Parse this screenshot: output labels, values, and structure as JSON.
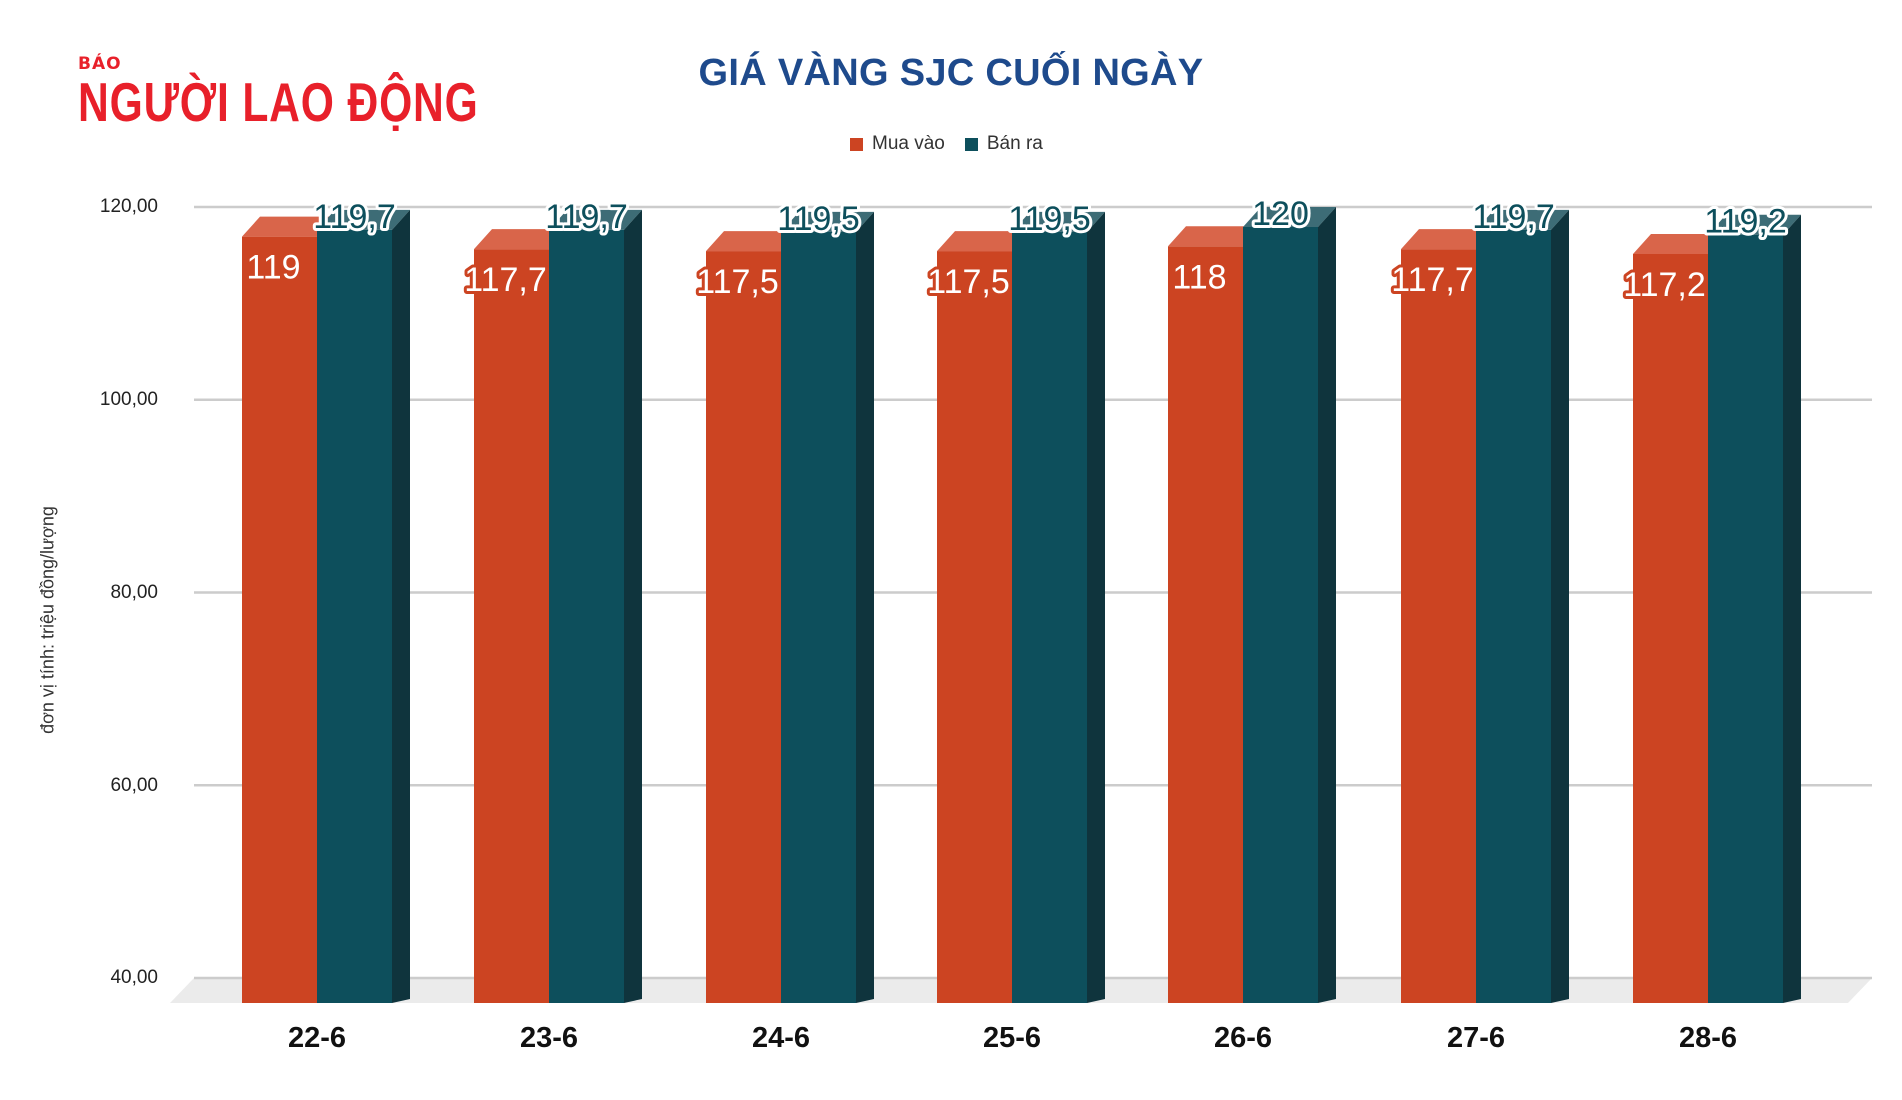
{
  "logo": {
    "small": "BÁO",
    "big": "NGƯỜI LAO ĐỘNG",
    "color": "#e8202a"
  },
  "title": "GIÁ VÀNG SJC CUỐI NGÀY",
  "legend": [
    {
      "label": "Mua vào",
      "color": "#cc4422"
    },
    {
      "label": "Bán ra",
      "color": "#0d4f5c"
    }
  ],
  "y_axis": {
    "title": "đơn vị tính: triệu đồng/lượng",
    "ticks": [
      "120,00",
      "100,00",
      "80,00",
      "60,00",
      "40,00"
    ]
  },
  "colors": {
    "buy_front": "#cc4422",
    "buy_top": "#d9654a",
    "buy_side": "#a5361b",
    "sell_front": "#0d4f5c",
    "sell_top": "#3d6c76",
    "sell_side": "#0f343d",
    "grid": "#cccccc",
    "floor": "#ebebeb"
  },
  "chart_data": {
    "type": "bar",
    "title": "GIÁ VÀNG SJC CUỐI NGÀY",
    "xlabel": "",
    "ylabel": "đơn vị tính: triệu đồng/lượng",
    "ylim": [
      40,
      120
    ],
    "yticks": [
      40,
      60,
      80,
      100,
      120
    ],
    "grid": true,
    "legend_position": "top",
    "categories": [
      "22-6",
      "23-6",
      "24-6",
      "25-6",
      "26-6",
      "27-6",
      "28-6"
    ],
    "series": [
      {
        "name": "Mua vào",
        "values": [
          119,
          117.7,
          117.5,
          117.5,
          118,
          117.7,
          117.2
        ],
        "labels": [
          "119",
          "117,7",
          "117,5",
          "117,5",
          "118",
          "117,7",
          "117,2"
        ]
      },
      {
        "name": "Bán ra",
        "values": [
          119.7,
          119.7,
          119.5,
          119.5,
          120,
          119.7,
          119.2
        ],
        "labels": [
          "119,7",
          "119,7",
          "119,5",
          "119,5",
          "120",
          "119,7",
          "119,2"
        ]
      }
    ]
  }
}
